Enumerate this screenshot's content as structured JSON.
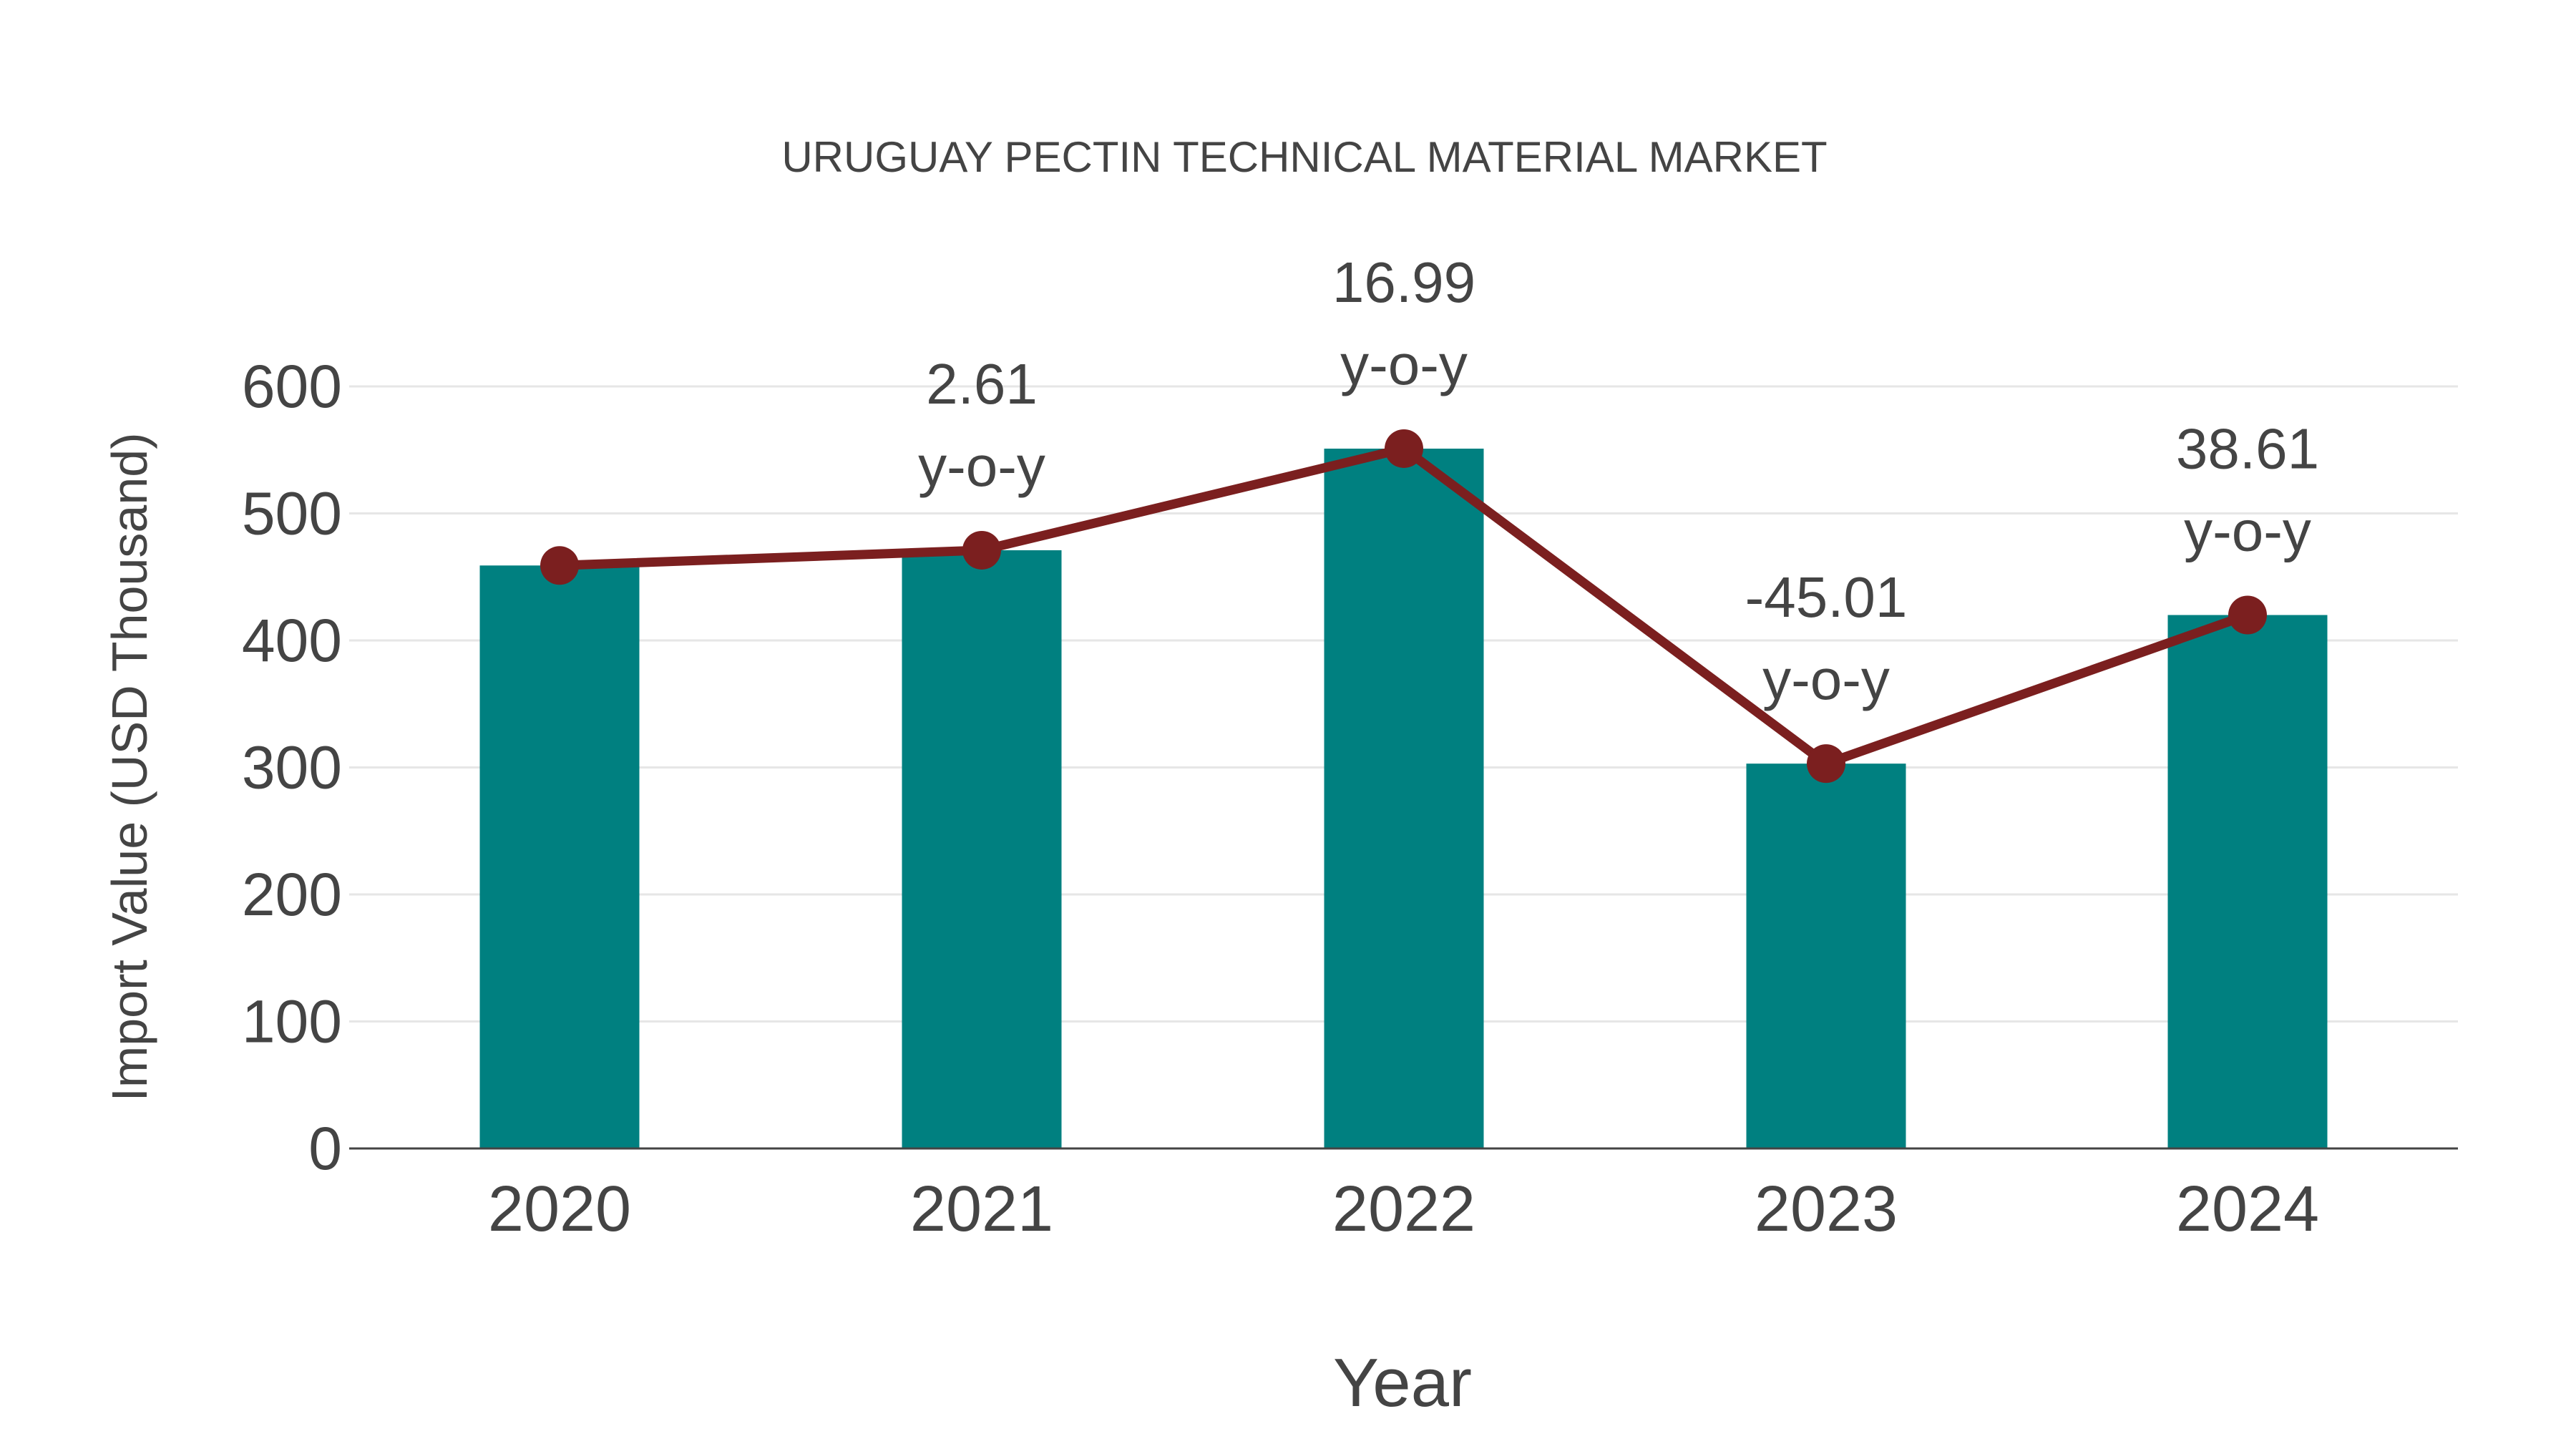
{
  "chart_data": {
    "type": "bar",
    "title": "URUGUAY PECTIN TECHNICAL MATERIAL MARKET",
    "xlabel": "Year",
    "ylabel": "Import Value (USD Thousand)",
    "categories": [
      "2020",
      "2021",
      "2022",
      "2023",
      "2024"
    ],
    "series": [
      {
        "name": "Import Value",
        "type": "bar",
        "color": "#008080",
        "values": [
          459,
          471,
          551,
          303,
          420
        ]
      },
      {
        "name": "Import Value trend",
        "type": "line",
        "color": "#7b1f1f",
        "values": [
          459,
          471,
          551,
          303,
          420
        ]
      }
    ],
    "annotations": [
      {
        "category": "2021",
        "value": "2.61",
        "suffix": "y-o-y"
      },
      {
        "category": "2022",
        "value": "16.99",
        "suffix": "y-o-y"
      },
      {
        "category": "2023",
        "value": "-45.01",
        "suffix": "y-o-y"
      },
      {
        "category": "2024",
        "value": "38.61",
        "suffix": "y-o-y"
      }
    ],
    "yticks": [
      0,
      100,
      200,
      300,
      400,
      500,
      600
    ],
    "ylim": [
      0,
      600
    ],
    "grid": true,
    "legend": "none"
  }
}
